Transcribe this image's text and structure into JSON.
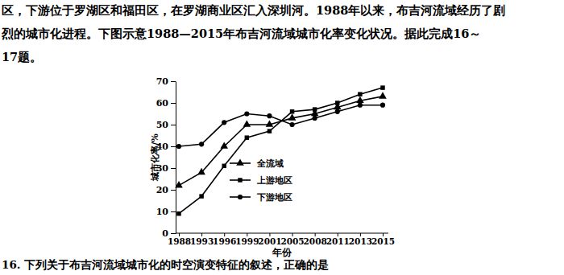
{
  "page_text": {
    "intro": [
      "区，下游位于罗湖区和福田区，在罗湖商业区汇入深圳河。1988年以来，布吉河流域经历了剧",
      "烈的城市化进程。下图示意1988—2015年布吉河流域城市化率变化状况。据此完成16～",
      "17题。"
    ],
    "question": "16. 下列关于布吉河流域城市化的时空演变特征的叙述，正确的是"
  },
  "chart_data": {
    "type": "line",
    "x_label": "年份",
    "y_label": "城市化率/%",
    "categories": [
      "1988",
      "1993",
      "1996",
      "1999",
      "2001",
      "2005",
      "2008",
      "2011",
      "2013",
      "2015"
    ],
    "series": [
      {
        "name": "全流域",
        "color": "#000000",
        "marker": "triangle",
        "line_style": "solid",
        "values": [
          22,
          28,
          40,
          50,
          50,
          53,
          55,
          58,
          61,
          63
        ]
      },
      {
        "name": "上游地区",
        "color": "#000000",
        "marker": "square",
        "line_style": "solid",
        "values": [
          9,
          17,
          31,
          44,
          47,
          56,
          57,
          60,
          64,
          67
        ]
      },
      {
        "name": "下游地区",
        "color": "#000000",
        "marker": "circle",
        "line_style": "solid",
        "values": [
          40,
          41,
          51,
          55,
          54,
          50,
          53,
          56,
          59,
          59
        ]
      }
    ],
    "ylim": [
      0,
      70
    ],
    "yticks": [
      0,
      10,
      20,
      30,
      40,
      50,
      60,
      70
    ],
    "grid": false,
    "legend": "center"
  }
}
